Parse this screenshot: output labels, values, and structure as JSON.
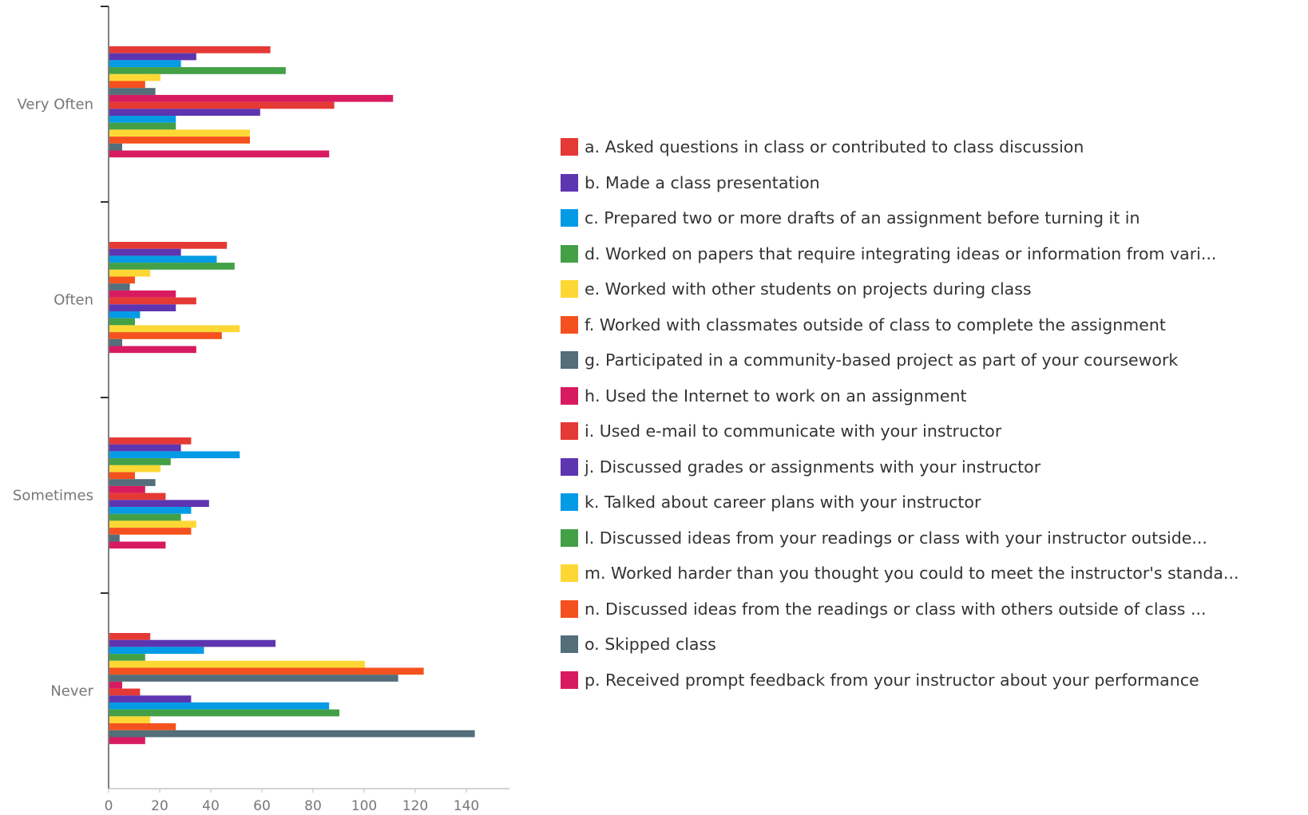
{
  "chart_data": {
    "type": "bar",
    "orientation": "horizontal",
    "categories": [
      "Very Often",
      "Often",
      "Sometimes",
      "Never"
    ],
    "x_ticks": [
      0,
      20,
      40,
      60,
      80,
      100,
      120,
      140
    ],
    "xlim": [
      0,
      157
    ],
    "grid": false,
    "legend_position": "right",
    "series": [
      {
        "name": "a. Asked questions in class or contributed to class discussion",
        "color": "#e53935",
        "values": [
          63,
          46,
          32,
          16
        ]
      },
      {
        "name": "b. Made a class presentation",
        "color": "#5e35b1",
        "values": [
          34,
          28,
          28,
          65
        ]
      },
      {
        "name": "c. Prepared two or more drafts of an assignment before turning it in",
        "color": "#039be5",
        "values": [
          28,
          42,
          51,
          37
        ]
      },
      {
        "name": "d. Worked on papers that require integrating ideas or information from vari...",
        "color": "#43a047",
        "values": [
          69,
          49,
          24,
          14
        ]
      },
      {
        "name": "e. Worked with other students on projects during class",
        "color": "#fdd835",
        "values": [
          20,
          16,
          20,
          100
        ]
      },
      {
        "name": "f. Worked with classmates outside of class to complete the assignment",
        "color": "#f4511e",
        "values": [
          14,
          10,
          10,
          123
        ]
      },
      {
        "name": "g. Participated in a community-based project as part of your coursework",
        "color": "#546e7a",
        "values": [
          18,
          8,
          18,
          113
        ]
      },
      {
        "name": "h. Used the Internet to work on an assignment",
        "color": "#d81b60",
        "values": [
          111,
          26,
          14,
          5
        ]
      },
      {
        "name": "i. Used e-mail to communicate with your instructor",
        "color": "#e53935",
        "values": [
          88,
          34,
          22,
          12
        ]
      },
      {
        "name": "j. Discussed grades or assignments with your instructor",
        "color": "#5e35b1",
        "values": [
          59,
          26,
          39,
          32
        ]
      },
      {
        "name": "k. Talked about career plans with your instructor",
        "color": "#039be5",
        "values": [
          26,
          12,
          32,
          86
        ]
      },
      {
        "name": "l. Discussed ideas from your readings or class with your instructor outside...",
        "color": "#43a047",
        "values": [
          26,
          10,
          28,
          90
        ]
      },
      {
        "name": "m. Worked harder than you thought you could to meet the instructor's standa...",
        "color": "#fdd835",
        "values": [
          55,
          51,
          34,
          16
        ]
      },
      {
        "name": "n. Discussed ideas from the readings or class with others outside of class ...",
        "color": "#f4511e",
        "values": [
          55,
          44,
          32,
          26
        ]
      },
      {
        "name": "o. Skipped class",
        "color": "#546e7a",
        "values": [
          5,
          5,
          4,
          143
        ]
      },
      {
        "name": "p. Received prompt feedback from your instructor about your performance",
        "color": "#d81b60",
        "values": [
          86,
          34,
          22,
          14
        ]
      }
    ]
  }
}
